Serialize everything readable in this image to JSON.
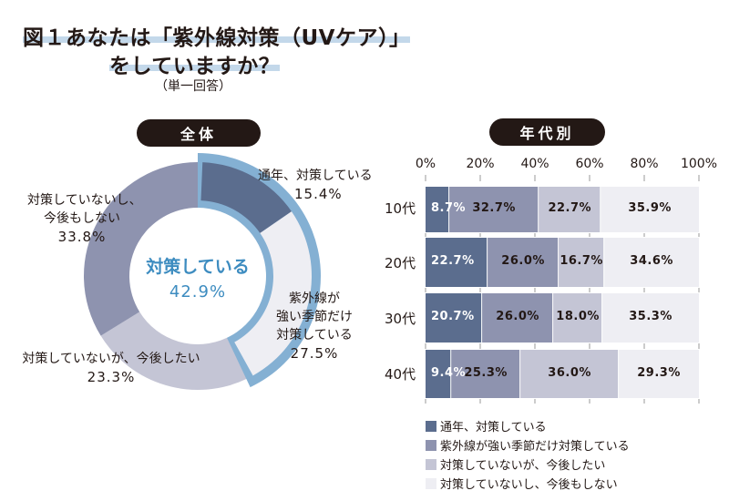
{
  "title": {
    "line1": "図１あなたは「紫外線対策（UVケア）」",
    "line2": "をしていますか？",
    "subtitle": "（単一回答）"
  },
  "colors": {
    "dark": "#5b6d8e",
    "medium": "#8e93af",
    "light": "#c4c5d5",
    "pale": "#eeeef3",
    "accent_blue": "#84b0d3",
    "accent_text": "#3d8cc0",
    "pill": "#231815",
    "title_highlight": "#c3d8ea"
  },
  "chart_data": [
    {
      "type": "pie",
      "title": "全体",
      "donut": true,
      "start": "top",
      "direction": "clockwise",
      "slices": [
        {
          "label": "通年、対策している",
          "value": 15.4,
          "display": "15.4%"
        },
        {
          "label": "紫外線が強い季節だけ対策している",
          "value": 27.5,
          "display": "27.5%"
        },
        {
          "label": "対策していないが、今後したい",
          "value": 23.3,
          "display": "23.3%"
        },
        {
          "label": "対策していないし、今後もしない",
          "value": 33.8,
          "display": "33.8%"
        }
      ],
      "slice_labels": {
        "s0": [
          "通年、対策している"
        ],
        "s1": [
          "紫外線が",
          "強い季節だけ",
          "対策している"
        ],
        "s2": [
          "対策していないが、今後したい"
        ],
        "s3": [
          "対策していないし、",
          "今後もしない"
        ]
      },
      "highlight_group": {
        "label": "対策している",
        "value": 42.9,
        "display": "42.9%",
        "slices": [
          0,
          1
        ]
      }
    },
    {
      "type": "bar",
      "orientation": "horizontal",
      "stacked": true,
      "title": "年代別",
      "categories": [
        "10代",
        "20代",
        "30代",
        "40代"
      ],
      "xlim": [
        0,
        100
      ],
      "xticks": [
        "0%",
        "20%",
        "40%",
        "60%",
        "80%",
        "100%"
      ],
      "series": [
        {
          "name": "通年、対策している",
          "values": [
            8.7,
            22.7,
            20.7,
            9.4
          ]
        },
        {
          "name": "紫外線が強い季節だけ対策している",
          "values": [
            32.7,
            26.0,
            26.0,
            25.3
          ]
        },
        {
          "name": "対策していないが、今後したい",
          "values": [
            22.7,
            16.7,
            18.0,
            36.0
          ]
        },
        {
          "name": "対策していないし、今後もしない",
          "values": [
            35.9,
            34.6,
            35.3,
            29.3
          ]
        }
      ],
      "labels": [
        [
          "8.7%",
          "32.7%",
          "22.7%",
          "35.9%"
        ],
        [
          "22.7%",
          "26.0%",
          "16.7%",
          "34.6%"
        ],
        [
          "20.7%",
          "26.0%",
          "18.0%",
          "35.3%"
        ],
        [
          "9.4%",
          "25.3%",
          "36.0%",
          "29.3%"
        ]
      ],
      "legend": [
        "通年、対策している",
        "紫外線が強い季節だけ対策している",
        "対策していないが、今後したい",
        "対策していないし、今後もしない"
      ],
      "legend_position": "bottom-left"
    }
  ]
}
